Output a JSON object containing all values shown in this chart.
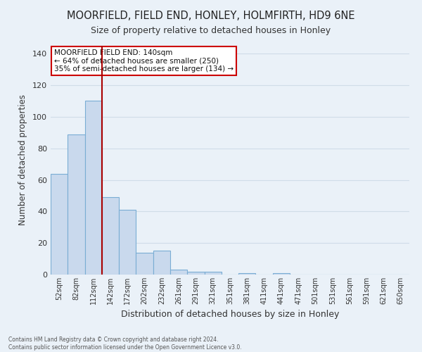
{
  "title": "MOORFIELD, FIELD END, HONLEY, HOLMFIRTH, HD9 6NE",
  "subtitle": "Size of property relative to detached houses in Honley",
  "xlabel": "Distribution of detached houses by size in Honley",
  "ylabel": "Number of detached properties",
  "bar_labels": [
    "52sqm",
    "82sqm",
    "112sqm",
    "142sqm",
    "172sqm",
    "202sqm",
    "232sqm",
    "261sqm",
    "291sqm",
    "321sqm",
    "351sqm",
    "381sqm",
    "411sqm",
    "441sqm",
    "471sqm",
    "501sqm",
    "531sqm",
    "561sqm",
    "591sqm",
    "621sqm",
    "650sqm"
  ],
  "bar_values": [
    64,
    89,
    110,
    49,
    41,
    14,
    15,
    3,
    2,
    2,
    0,
    1,
    0,
    1,
    0,
    0,
    0,
    0,
    0,
    0,
    0
  ],
  "bar_color": "#c9d9ed",
  "bar_edge_color": "#7aadd4",
  "grid_color": "#d0dce8",
  "background_color": "#eaf1f8",
  "vline_color": "#aa0000",
  "annotation_text": "MOORFIELD FIELD END: 140sqm\n← 64% of detached houses are smaller (250)\n35% of semi-detached houses are larger (134) →",
  "annotation_box_color": "#ffffff",
  "annotation_box_edge_color": "#cc0000",
  "ylim": [
    0,
    145
  ],
  "yticks": [
    0,
    20,
    40,
    60,
    80,
    100,
    120,
    140
  ],
  "footer_line1": "Contains HM Land Registry data © Crown copyright and database right 2024.",
  "footer_line2": "Contains public sector information licensed under the Open Government Licence v3.0."
}
